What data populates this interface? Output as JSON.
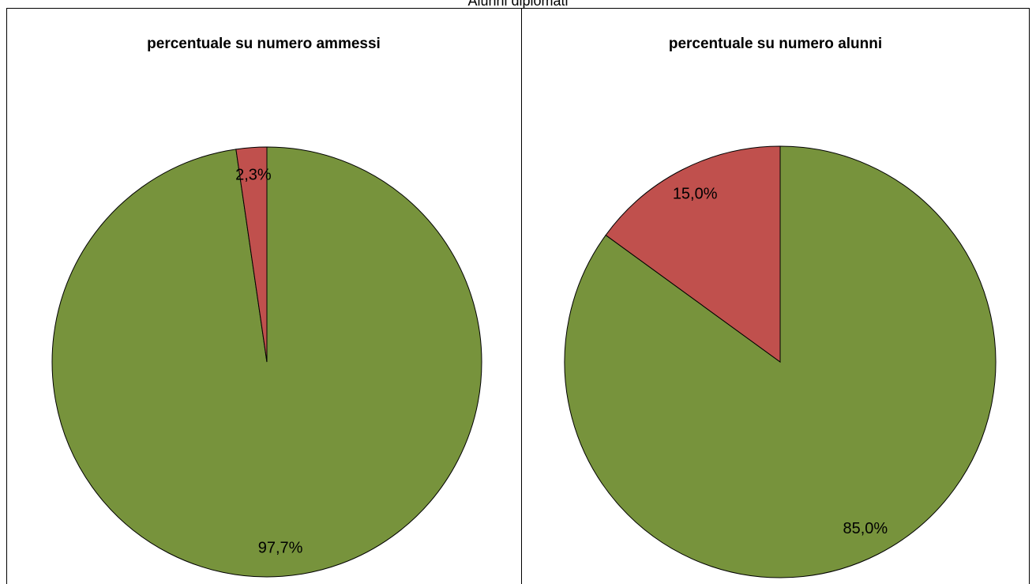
{
  "title": "Alunni diplomati",
  "chart_data": [
    {
      "type": "pie",
      "title": "percentuale su numero ammessi",
      "values": [
        97.7,
        2.3
      ],
      "value_labels": [
        "97,7%",
        "2,3%"
      ],
      "colors": [
        "#77933c",
        "#c0504d"
      ]
    },
    {
      "type": "pie",
      "title": "percentuale su numero alunni",
      "values": [
        85.0,
        15.0
      ],
      "value_labels": [
        "85,0%",
        "15,0%"
      ],
      "colors": [
        "#77933c",
        "#c0504d"
      ]
    }
  ]
}
